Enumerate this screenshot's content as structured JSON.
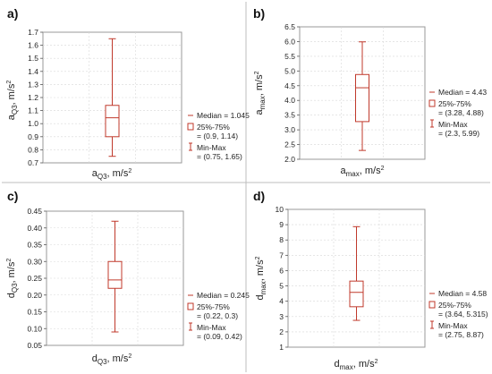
{
  "colors": {
    "box": "#c0392b",
    "frame": "#9a9a9a",
    "grid": "#d8d8d8"
  },
  "chart_data": [
    {
      "panel": "a)",
      "type": "box",
      "ylabel": {
        "main": "a",
        "sub": "Q3",
        "rest": ", m/s",
        "sup": "2"
      },
      "xlabel": {
        "main": "a",
        "sub": "Q3",
        "rest": ", m/s",
        "sup": "2"
      },
      "ylim": [
        0.7,
        1.7
      ],
      "yticks": [
        "0.7",
        "0.8",
        "0.9",
        "1.0",
        "1.1",
        "1.2",
        "1.3",
        "1.4",
        "1.5",
        "1.6",
        "1.7"
      ],
      "stats": {
        "median": 1.045,
        "q1": 0.9,
        "q3": 1.14,
        "min": 0.75,
        "max": 1.65
      },
      "legend": [
        {
          "symbol": "median",
          "lines": [
            "Median = 1.045"
          ]
        },
        {
          "symbol": "box",
          "lines": [
            "25%-75%",
            "= (0.9, 1.14)"
          ]
        },
        {
          "symbol": "whisker",
          "lines": [
            "Min-Max",
            "= (0.75, 1.65)"
          ]
        }
      ]
    },
    {
      "panel": "b)",
      "type": "box",
      "ylabel": {
        "main": "a",
        "sub": "max",
        "rest": ", m/s",
        "sup": "2"
      },
      "xlabel": {
        "main": "a",
        "sub": "max",
        "rest": ", m/s",
        "sup": "2"
      },
      "ylim": [
        2.0,
        6.5
      ],
      "yticks": [
        "2.0",
        "2.5",
        "3.0",
        "3.5",
        "4.0",
        "4.5",
        "5.0",
        "5.5",
        "6.0",
        "6.5"
      ],
      "stats": {
        "median": 4.43,
        "q1": 3.28,
        "q3": 4.88,
        "min": 2.3,
        "max": 5.99
      },
      "legend": [
        {
          "symbol": "median",
          "lines": [
            "Median = 4.43"
          ]
        },
        {
          "symbol": "box",
          "lines": [
            "25%-75%",
            "= (3.28, 4.88)"
          ]
        },
        {
          "symbol": "whisker",
          "lines": [
            "Min-Max",
            "= (2.3, 5.99)"
          ]
        }
      ]
    },
    {
      "panel": "c)",
      "type": "box",
      "ylabel": {
        "main": "d",
        "sub": "Q3",
        "rest": ", m/s",
        "sup": "2"
      },
      "xlabel": {
        "main": "d",
        "sub": "Q3",
        "rest": ", m/s",
        "sup": "2"
      },
      "ylim": [
        0.05,
        0.45
      ],
      "yticks": [
        "0.05",
        "0.10",
        "0.15",
        "0.20",
        "0.25",
        "0.30",
        "0.35",
        "0.40",
        "0.45"
      ],
      "stats": {
        "median": 0.245,
        "q1": 0.22,
        "q3": 0.3,
        "min": 0.09,
        "max": 0.42
      },
      "legend": [
        {
          "symbol": "median",
          "lines": [
            "Median = 0.245"
          ]
        },
        {
          "symbol": "box",
          "lines": [
            "25%-75%",
            "= (0.22, 0.3)"
          ]
        },
        {
          "symbol": "whisker",
          "lines": [
            "Min-Max",
            "= (0.09, 0.42)"
          ]
        }
      ]
    },
    {
      "panel": "d)",
      "type": "box",
      "ylabel": {
        "main": "d",
        "sub": "max",
        "rest": ", m/s",
        "sup": "2"
      },
      "xlabel": {
        "main": "d",
        "sub": "max",
        "rest": ", m/s",
        "sup": "2"
      },
      "ylim": [
        1,
        10
      ],
      "yticks": [
        "1",
        "2",
        "3",
        "4",
        "5",
        "6",
        "7",
        "8",
        "9",
        "10"
      ],
      "stats": {
        "median": 4.58,
        "q1": 3.64,
        "q3": 5.315,
        "min": 2.75,
        "max": 8.87
      },
      "legend": [
        {
          "symbol": "median",
          "lines": [
            "Median = 4.58"
          ]
        },
        {
          "symbol": "box",
          "lines": [
            "25%-75%",
            "= (3.64, 5.315)"
          ]
        },
        {
          "symbol": "whisker",
          "lines": [
            "Min-Max",
            "= (2.75, 8.87)"
          ]
        }
      ]
    }
  ]
}
